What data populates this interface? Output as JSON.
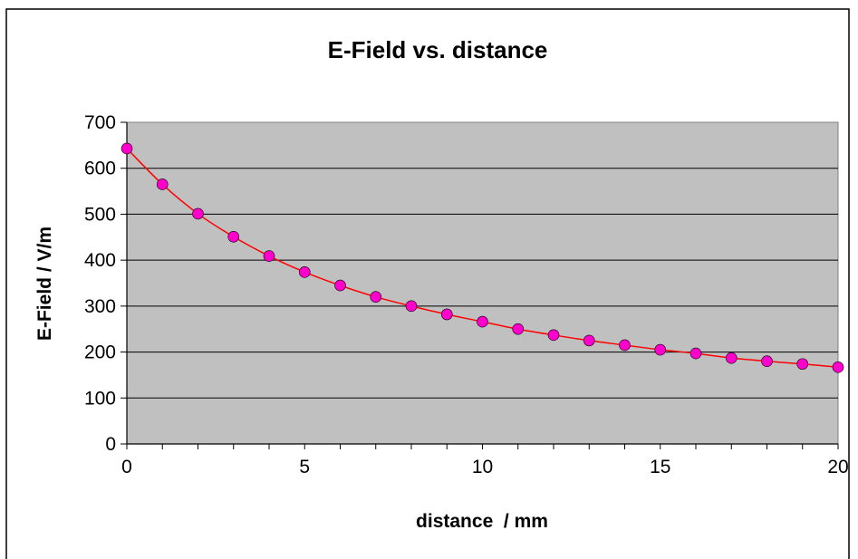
{
  "chart_data": {
    "type": "line",
    "title": "E-Field vs. distance",
    "xlabel": "distance  / mm",
    "ylabel": "E-Field / V/m",
    "xlim": [
      0,
      20
    ],
    "ylim": [
      0,
      700
    ],
    "x_ticks": [
      "0",
      "5",
      "10",
      "15",
      "20"
    ],
    "y_ticks": [
      "0",
      "100",
      "200",
      "300",
      "400",
      "500",
      "600",
      "700"
    ],
    "grid": true,
    "legend": "none",
    "plot_background": "#c0c0c0",
    "series": [
      {
        "line_color": "#ff0000",
        "marker_color": "#ff00cc",
        "x": [
          0,
          1,
          2,
          3,
          4,
          5,
          6,
          7,
          8,
          9,
          10,
          11,
          12,
          13,
          14,
          15,
          16,
          17,
          18,
          19,
          20
        ],
        "y": [
          643,
          565,
          501,
          451,
          409,
          374,
          345,
          320,
          300,
          282,
          266,
          250,
          237,
          225,
          215,
          205,
          197,
          187,
          180,
          174,
          167
        ]
      }
    ]
  }
}
